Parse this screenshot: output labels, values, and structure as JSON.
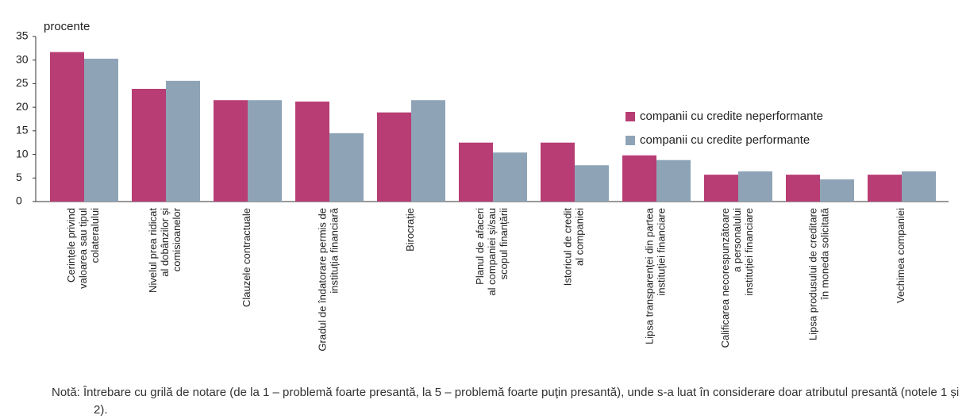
{
  "chart_data": {
    "type": "bar",
    "y_unit_label": "procente",
    "categories": [
      "Cerințele privind\nvaloarea sau tipul\ncolateralului",
      "Nivelul prea ridicat\nal dobânzilor și\ncomisioanelor",
      "Clauzele contractuale",
      "Gradul de îndatorare permis de\ninstituția financiară",
      "Birocrație",
      "Planul de afaceri\nal companiei și/sau\nscopul finanțării",
      "Istoricul de credit\nal companiei",
      "Lipsa transparenței din partea\ninstituției financiare",
      "Calificarea necorespunzătoare\na personalului\ninstituției financiare",
      "Lipsa produsului de creditare\nîn moneda solicitată",
      "Vechimea companiei"
    ],
    "series": [
      {
        "name": "companii cu credite neperformante",
        "color": "#b83d74",
        "values": [
          31.7,
          23.9,
          21.5,
          21.2,
          18.9,
          12.5,
          12.5,
          9.8,
          5.7,
          5.7,
          5.7
        ]
      },
      {
        "name": "companii cu credite performante",
        "color": "#8ea4b6",
        "values": [
          30.3,
          25.6,
          21.5,
          14.5,
          21.5,
          10.4,
          7.7,
          8.8,
          6.4,
          4.7,
          6.4
        ]
      }
    ],
    "ylim": [
      0,
      35
    ],
    "yticks": [
      0,
      5,
      10,
      15,
      20,
      25,
      30,
      35
    ],
    "grid": false,
    "legend": "upper right",
    "note": "Notă: Întrebare cu grilă de notare (de la 1 – problemă foarte presantă, la 5 – problemă foarte puţin presantă), unde s-a luat în considerare doar atributul presantă (notele 1 și 2)."
  }
}
